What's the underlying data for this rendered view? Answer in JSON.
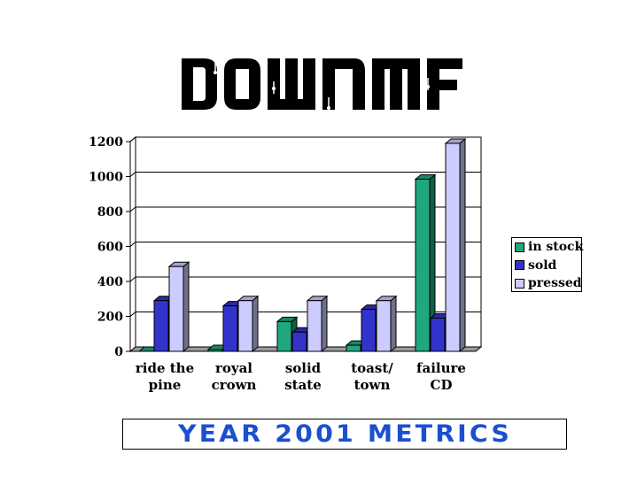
{
  "header": {
    "logo_text": "DOWNMF"
  },
  "banner": {
    "text": "YEAR 2001 METRICS"
  },
  "colors": {
    "in_stock": "#1fa77e",
    "sold": "#3333cc",
    "pressed": "#ccccff"
  },
  "chart_data": {
    "type": "bar",
    "style": "3d-clustered",
    "categories": [
      "ride the pine",
      "royal crown",
      "solid state",
      "toast/ town",
      "failure CD"
    ],
    "category_lines": [
      [
        "ride the",
        "pine"
      ],
      [
        "royal",
        "crown"
      ],
      [
        "solid",
        "state"
      ],
      [
        "toast/",
        "town"
      ],
      [
        "failure",
        "CD"
      ]
    ],
    "series": [
      {
        "name": "in stock",
        "values": [
          0,
          10,
          170,
          35,
          985
        ]
      },
      {
        "name": "sold",
        "values": [
          290,
          260,
          110,
          240,
          190
        ]
      },
      {
        "name": "pressed",
        "values": [
          485,
          290,
          290,
          290,
          1190
        ]
      }
    ],
    "ylim": [
      0,
      1200
    ],
    "yticks": [
      "0",
      "200",
      "400",
      "600",
      "800",
      "1000",
      "1200"
    ],
    "grid": true,
    "legend": "right",
    "title": "",
    "xlabel": "",
    "ylabel": ""
  }
}
